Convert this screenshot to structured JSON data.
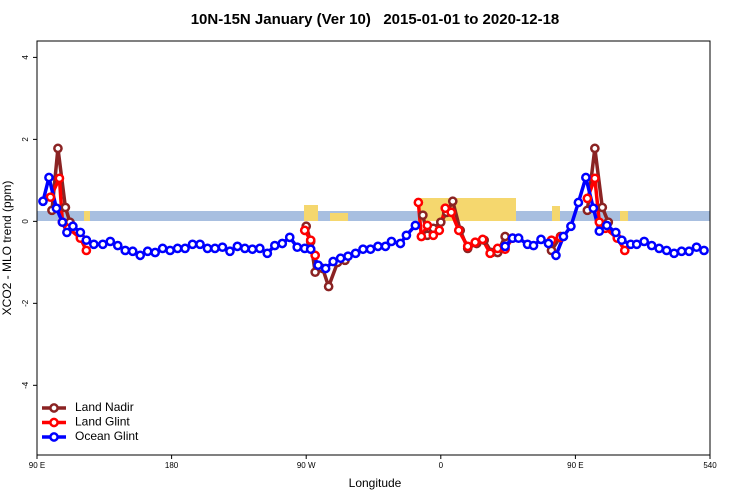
{
  "chart_data": {
    "type": "line",
    "title": "10N-15N January (Ver 10)   2015-01-01 to 2020-12-18",
    "x_label": "Longitude",
    "y_label": "XCO2 - MLO trend (ppm)",
    "xlim": [
      90,
      540
    ],
    "ylim": [
      -5.7,
      4.4
    ],
    "xticks": [
      {
        "value": 90,
        "label": "90 E"
      },
      180,
      {
        "value": 270,
        "label": "90 W"
      },
      {
        "value": 360,
        "label": "0"
      },
      {
        "value": 450,
        "label": "90 E"
      },
      540
    ],
    "yticks": [
      4,
      2,
      0,
      -2,
      -4
    ],
    "grid": false,
    "legend": "bottomleft",
    "series": [
      {
        "name": "Land Nadir",
        "color": "#8b2323",
        "x": [
          100,
          104,
          109,
          112,
          null,
          270,
          273,
          276,
          281,
          285,
          291,
          296,
          null,
          348,
          351,
          355,
          360,
          364,
          368,
          373,
          378,
          384,
          389,
          394,
          398,
          403,
          null,
          434,
          440,
          null,
          458,
          463,
          468,
          472
        ],
        "values": [
          0.27,
          1.78,
          0.34,
          -0.02,
          null,
          -0.12,
          -0.49,
          -1.24,
          -1.15,
          -1.59,
          -1.0,
          -0.95,
          null,
          0.15,
          -0.34,
          -0.17,
          -0.02,
          0.22,
          0.49,
          -0.22,
          -0.66,
          -0.54,
          -0.46,
          -0.76,
          -0.76,
          -0.37,
          null,
          -0.71,
          -0.37,
          null,
          0.27,
          1.78,
          0.34,
          -0.02
        ]
      },
      {
        "name": "Land Glint",
        "color": "#ff0000",
        "x": [
          99,
          105,
          107,
          111,
          119,
          123,
          null,
          269,
          273,
          276,
          null,
          345,
          347,
          351,
          355,
          359,
          363,
          367,
          372,
          378,
          383,
          388,
          393,
          398,
          403,
          408,
          null,
          434,
          440,
          null,
          458,
          463,
          466,
          470,
          478,
          483
        ],
        "values": [
          0.59,
          1.05,
          -0.02,
          -0.17,
          -0.41,
          -0.71,
          null,
          -0.22,
          -0.46,
          -0.83,
          null,
          0.46,
          -0.37,
          -0.1,
          -0.34,
          -0.22,
          0.32,
          0.22,
          -0.22,
          -0.61,
          -0.51,
          -0.44,
          -0.78,
          -0.66,
          -0.68,
          -0.41,
          null,
          -0.46,
          -0.39,
          null,
          0.56,
          1.05,
          -0.02,
          -0.17,
          -0.41,
          -0.71
        ]
      },
      {
        "name": "Ocean Glint",
        "color": "#0000ff",
        "x": [
          94,
          98,
          103,
          107,
          110,
          114,
          119,
          123,
          128,
          134,
          139,
          144,
          149,
          154,
          159,
          164,
          169,
          174,
          179,
          184,
          189,
          194,
          199,
          204,
          209,
          214,
          219,
          224,
          229,
          234,
          239,
          244,
          249,
          254,
          259,
          264,
          269,
          273,
          278,
          283,
          288,
          293,
          298,
          303,
          308,
          313,
          318,
          323,
          327,
          333,
          337,
          343,
          null,
          403,
          408,
          412,
          418,
          422,
          427,
          432,
          437,
          442,
          447,
          452,
          457,
          462,
          466,
          471,
          477,
          481,
          487,
          491,
          496,
          501,
          506,
          511,
          516,
          521,
          526,
          531,
          536
        ],
        "values": [
          0.49,
          1.07,
          0.32,
          -0.02,
          -0.27,
          -0.12,
          -0.27,
          -0.46,
          -0.56,
          -0.56,
          -0.49,
          -0.59,
          -0.71,
          -0.73,
          -0.83,
          -0.73,
          -0.76,
          -0.66,
          -0.71,
          -0.66,
          -0.66,
          -0.56,
          -0.56,
          -0.66,
          -0.66,
          -0.63,
          -0.73,
          -0.61,
          -0.66,
          -0.68,
          -0.66,
          -0.78,
          -0.59,
          -0.54,
          -0.39,
          -0.63,
          -0.66,
          -0.68,
          -1.07,
          -1.15,
          -0.98,
          -0.9,
          -0.85,
          -0.78,
          -0.68,
          -0.68,
          -0.61,
          -0.61,
          -0.49,
          -0.54,
          -0.34,
          -0.1,
          null,
          -0.61,
          -0.41,
          -0.41,
          -0.56,
          -0.59,
          -0.44,
          -0.54,
          -0.83,
          -0.37,
          -0.12,
          0.46,
          1.07,
          0.32,
          -0.24,
          -0.1,
          -0.27,
          -0.46,
          -0.56,
          -0.56,
          -0.49,
          -0.59,
          -0.66,
          -0.71,
          -0.78,
          -0.73,
          -0.73,
          -0.63,
          -0.71
        ]
      }
    ]
  }
}
